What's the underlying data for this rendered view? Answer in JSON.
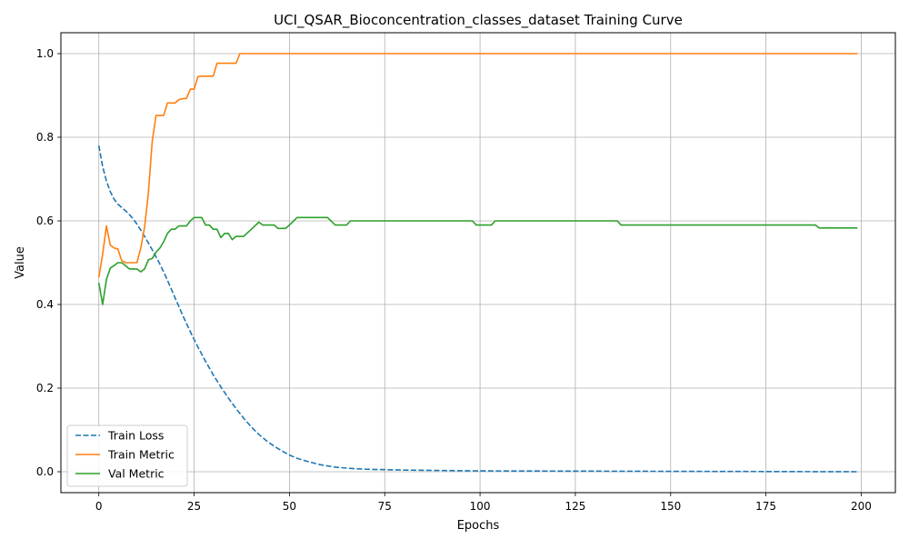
{
  "chart_data": {
    "type": "line",
    "title": "UCI_QSAR_Bioconcentration_classes_dataset Training Curve",
    "xlabel": "Epochs",
    "ylabel": "Value",
    "xlim": [
      -9.95,
      208.95
    ],
    "ylim": [
      -0.05,
      1.05
    ],
    "x_ticks": [
      0,
      25,
      50,
      75,
      100,
      125,
      150,
      175,
      200
    ],
    "y_ticks": [
      0.0,
      0.2,
      0.4,
      0.6,
      0.8,
      1.0
    ],
    "x_tick_labels": [
      "0",
      "25",
      "50",
      "75",
      "100",
      "125",
      "150",
      "175",
      "200"
    ],
    "y_tick_labels": [
      "0.0",
      "0.2",
      "0.4",
      "0.6",
      "0.8",
      "1.0"
    ],
    "grid": true,
    "legend_position": "lower-left",
    "series": [
      {
        "name": "Train Loss",
        "color": "#1f77b4",
        "style": "dashed",
        "points": [
          [
            0,
            0.78
          ],
          [
            1,
            0.73
          ],
          [
            2,
            0.695
          ],
          [
            3,
            0.67
          ],
          [
            4,
            0.652
          ],
          [
            5,
            0.64
          ],
          [
            6,
            0.632
          ],
          [
            7,
            0.624
          ],
          [
            8,
            0.615
          ],
          [
            9,
            0.605
          ],
          [
            10,
            0.592
          ],
          [
            11,
            0.578
          ],
          [
            12,
            0.563
          ],
          [
            13,
            0.547
          ],
          [
            14,
            0.531
          ],
          [
            15,
            0.514
          ],
          [
            16,
            0.497
          ],
          [
            17,
            0.478
          ],
          [
            18,
            0.458
          ],
          [
            19,
            0.437
          ],
          [
            20,
            0.416
          ],
          [
            22,
            0.374
          ],
          [
            24,
            0.335
          ],
          [
            26,
            0.298
          ],
          [
            28,
            0.264
          ],
          [
            30,
            0.232
          ],
          [
            32,
            0.203
          ],
          [
            34,
            0.176
          ],
          [
            36,
            0.151
          ],
          [
            38,
            0.128
          ],
          [
            40,
            0.107
          ],
          [
            42,
            0.089
          ],
          [
            44,
            0.074
          ],
          [
            46,
            0.061
          ],
          [
            48,
            0.05
          ],
          [
            50,
            0.04
          ],
          [
            52,
            0.032
          ],
          [
            55,
            0.024
          ],
          [
            58,
            0.017
          ],
          [
            62,
            0.011
          ],
          [
            66,
            0.008
          ],
          [
            70,
            0.006
          ],
          [
            80,
            0.004
          ],
          [
            100,
            0.002
          ],
          [
            150,
            0.001
          ],
          [
            199,
            0.0
          ]
        ]
      },
      {
        "name": "Train Metric",
        "color": "#ff7f0e",
        "style": "solid",
        "points": [
          [
            0,
            0.465
          ],
          [
            1,
            0.52
          ],
          [
            2,
            0.588
          ],
          [
            3,
            0.542
          ],
          [
            4,
            0.535
          ],
          [
            5,
            0.533
          ],
          [
            6,
            0.505
          ],
          [
            7,
            0.5
          ],
          [
            8,
            0.5
          ],
          [
            9,
            0.5
          ],
          [
            10,
            0.5
          ],
          [
            11,
            0.535
          ],
          [
            12,
            0.585
          ],
          [
            13,
            0.667
          ],
          [
            14,
            0.79
          ],
          [
            15,
            0.852
          ],
          [
            16,
            0.852
          ],
          [
            17,
            0.852
          ],
          [
            18,
            0.882
          ],
          [
            19,
            0.882
          ],
          [
            20,
            0.882
          ],
          [
            21,
            0.89
          ],
          [
            22,
            0.892
          ],
          [
            23,
            0.893
          ],
          [
            24,
            0.915
          ],
          [
            25,
            0.915
          ],
          [
            26,
            0.945
          ],
          [
            27,
            0.946
          ],
          [
            28,
            0.946
          ],
          [
            29,
            0.946
          ],
          [
            30,
            0.946
          ],
          [
            31,
            0.977
          ],
          [
            32,
            0.977
          ],
          [
            33,
            0.977
          ],
          [
            34,
            0.977
          ],
          [
            35,
            0.977
          ],
          [
            36,
            0.977
          ],
          [
            37,
            1.0
          ],
          [
            199,
            1.0
          ]
        ]
      },
      {
        "name": "Val Metric",
        "color": "#2ca02c",
        "style": "solid",
        "points": [
          [
            0,
            0.452
          ],
          [
            1,
            0.4
          ],
          [
            2,
            0.46
          ],
          [
            3,
            0.487
          ],
          [
            4,
            0.493
          ],
          [
            5,
            0.5
          ],
          [
            6,
            0.5
          ],
          [
            7,
            0.493
          ],
          [
            8,
            0.485
          ],
          [
            9,
            0.485
          ],
          [
            10,
            0.485
          ],
          [
            11,
            0.478
          ],
          [
            12,
            0.485
          ],
          [
            13,
            0.507
          ],
          [
            14,
            0.51
          ],
          [
            15,
            0.525
          ],
          [
            16,
            0.535
          ],
          [
            17,
            0.55
          ],
          [
            18,
            0.57
          ],
          [
            19,
            0.58
          ],
          [
            20,
            0.58
          ],
          [
            21,
            0.588
          ],
          [
            22,
            0.588
          ],
          [
            23,
            0.588
          ],
          [
            24,
            0.6
          ],
          [
            25,
            0.608
          ],
          [
            26,
            0.608
          ],
          [
            27,
            0.608
          ],
          [
            28,
            0.59
          ],
          [
            29,
            0.59
          ],
          [
            30,
            0.58
          ],
          [
            31,
            0.58
          ],
          [
            32,
            0.56
          ],
          [
            33,
            0.57
          ],
          [
            34,
            0.57
          ],
          [
            35,
            0.555
          ],
          [
            36,
            0.563
          ],
          [
            37,
            0.563
          ],
          [
            38,
            0.563
          ],
          [
            40,
            0.58
          ],
          [
            42,
            0.597
          ],
          [
            43,
            0.59
          ],
          [
            44,
            0.59
          ],
          [
            46,
            0.59
          ],
          [
            47,
            0.582
          ],
          [
            49,
            0.582
          ],
          [
            50,
            0.59
          ],
          [
            52,
            0.608
          ],
          [
            60,
            0.608
          ],
          [
            62,
            0.59
          ],
          [
            65,
            0.59
          ],
          [
            66,
            0.6
          ],
          [
            98,
            0.6
          ],
          [
            99,
            0.59
          ],
          [
            103,
            0.59
          ],
          [
            104,
            0.6
          ],
          [
            136,
            0.6
          ],
          [
            137,
            0.59
          ],
          [
            188,
            0.59
          ],
          [
            189,
            0.583
          ],
          [
            199,
            0.583
          ]
        ]
      }
    ]
  }
}
